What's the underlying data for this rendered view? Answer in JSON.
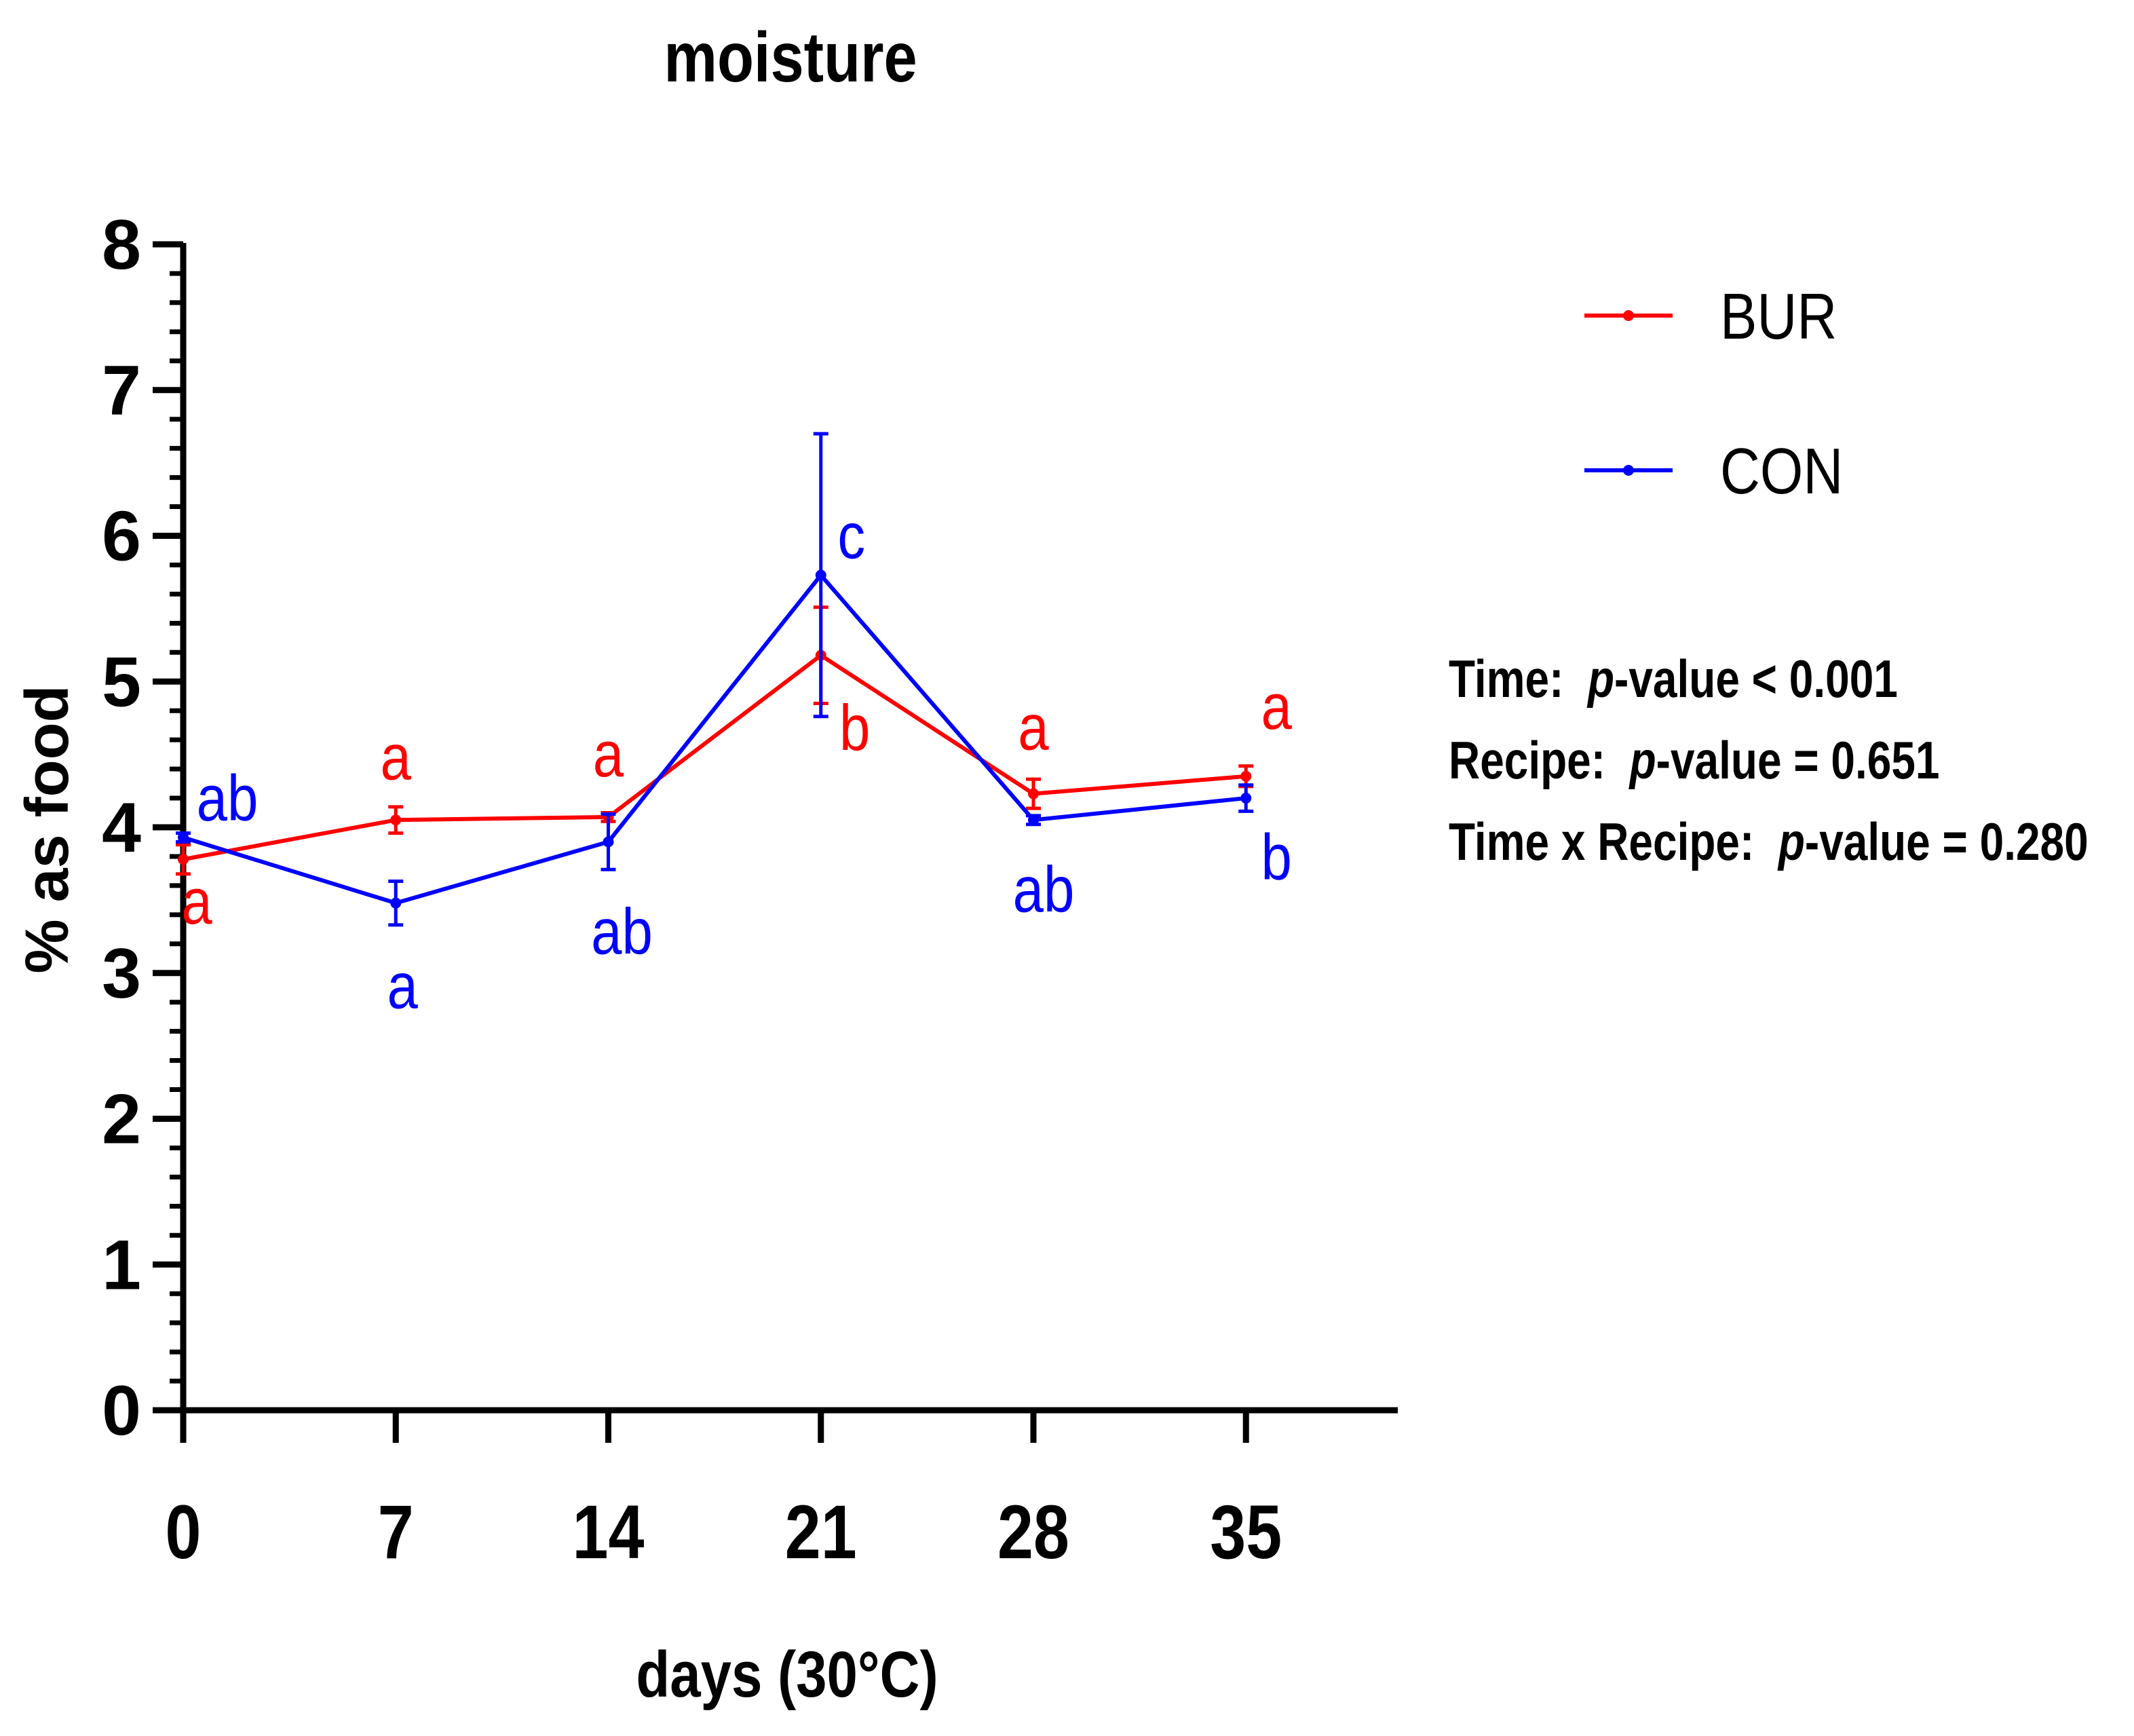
{
  "chart_data": {
    "type": "line",
    "title": "moisture",
    "xlabel": "days (30°C)",
    "ylabel": "% as food",
    "x": [
      0,
      7,
      14,
      21,
      28,
      35
    ],
    "xlim": [
      0,
      40
    ],
    "ylim": [
      0,
      8
    ],
    "xticks": [
      "0",
      "7",
      "14",
      "21",
      "28",
      "35"
    ],
    "yticks": [
      "0",
      "1",
      "2",
      "3",
      "4",
      "5",
      "6",
      "7",
      "8"
    ],
    "legend_position": "top-right",
    "series": [
      {
        "name": "BUR",
        "color": "#ff0000",
        "values": [
          3.78,
          4.05,
          4.07,
          5.18,
          4.23,
          4.35
        ],
        "errors": [
          0.1,
          0.09,
          0.03,
          0.33,
          0.1,
          0.07
        ],
        "letters": [
          "a",
          "a",
          "a",
          "b",
          "a",
          "a"
        ]
      },
      {
        "name": "CON",
        "color": "#0000ff",
        "values": [
          3.93,
          3.48,
          3.9,
          5.73,
          4.05,
          4.2
        ],
        "errors": [
          0.03,
          0.15,
          0.19,
          0.97,
          0.03,
          0.09
        ],
        "letters": [
          "ab",
          "a",
          "ab",
          "c",
          "ab",
          "b"
        ]
      }
    ],
    "stats": {
      "time": {
        "label": "Time:",
        "p_label": "p",
        "rest": "-value < 0.001"
      },
      "recipe": {
        "label": "Recipe:",
        "p_label": "p",
        "rest": "-value = 0.651"
      },
      "interaction": {
        "label": "Time x Recipe:",
        "p_label": "p",
        "rest": "-value = 0.280"
      }
    }
  }
}
